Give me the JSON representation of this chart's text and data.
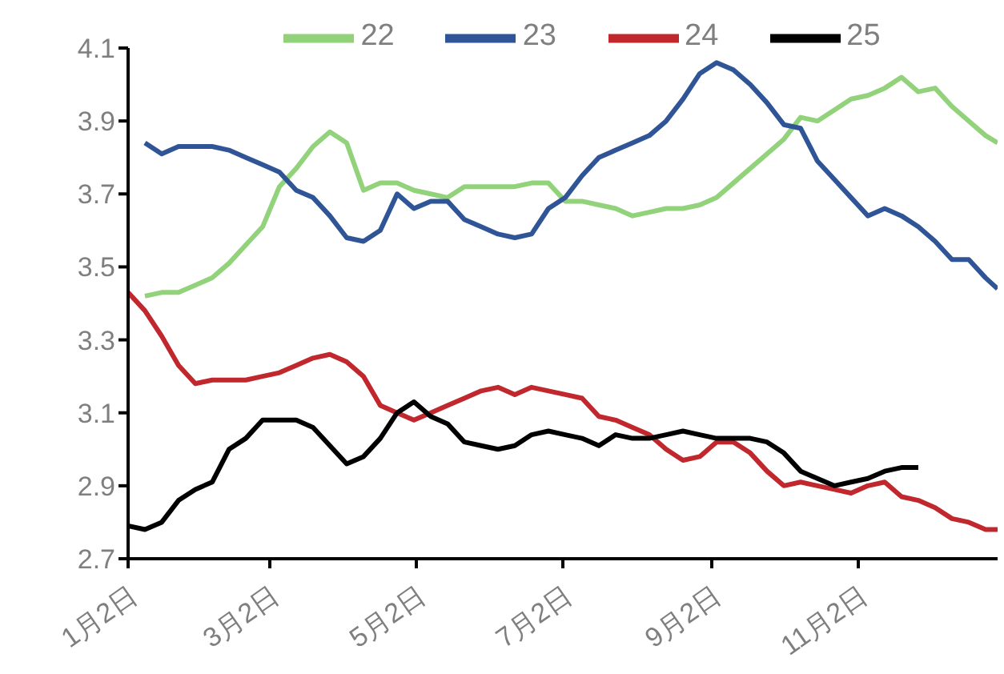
{
  "chart_data": {
    "type": "line",
    "x": [
      "--01-02",
      "--01-09",
      "--01-16",
      "--01-23",
      "--01-30",
      "--02-06",
      "--02-13",
      "--02-20",
      "--02-27",
      "--03-06",
      "--03-13",
      "--03-20",
      "--03-27",
      "--04-03",
      "--04-10",
      "--04-17",
      "--04-24",
      "--05-01",
      "--05-08",
      "--05-15",
      "--05-22",
      "--05-29",
      "--06-05",
      "--06-12",
      "--06-19",
      "--06-26",
      "--07-03",
      "--07-10",
      "--07-17",
      "--07-24",
      "--07-31",
      "--08-07",
      "--08-14",
      "--08-21",
      "--08-28",
      "--09-04",
      "--09-11",
      "--09-18",
      "--09-25",
      "--10-02",
      "--10-09",
      "--10-16",
      "--10-23",
      "--10-30",
      "--11-06",
      "--11-13",
      "--11-20",
      "--11-27",
      "--12-04",
      "--12-11",
      "--12-18",
      "--12-25",
      "--12-30"
    ],
    "series": [
      {
        "name": "22",
        "color": "#92d27a",
        "values": [
          null,
          3.42,
          3.43,
          3.43,
          3.45,
          3.47,
          3.51,
          3.56,
          3.61,
          3.72,
          3.77,
          3.83,
          3.87,
          3.84,
          3.71,
          3.73,
          3.73,
          3.71,
          3.7,
          3.69,
          3.72,
          3.72,
          3.72,
          3.72,
          3.73,
          3.73,
          3.68,
          3.68,
          3.67,
          3.66,
          3.64,
          3.65,
          3.66,
          3.66,
          3.67,
          3.69,
          3.73,
          3.77,
          3.81,
          3.85,
          3.91,
          3.9,
          3.93,
          3.96,
          3.97,
          3.99,
          4.02,
          3.98,
          3.99,
          3.94,
          3.9,
          3.86,
          3.84
        ]
      },
      {
        "name": "23",
        "color": "#2f5597",
        "values": [
          null,
          3.84,
          3.81,
          3.83,
          3.83,
          3.83,
          3.82,
          3.8,
          3.78,
          3.76,
          3.71,
          3.69,
          3.64,
          3.58,
          3.57,
          3.6,
          3.7,
          3.66,
          3.68,
          3.68,
          3.63,
          3.61,
          3.59,
          3.58,
          3.59,
          3.66,
          3.69,
          3.75,
          3.8,
          3.82,
          3.84,
          3.86,
          3.9,
          3.96,
          4.03,
          4.06,
          4.04,
          4.0,
          3.95,
          3.89,
          3.88,
          3.79,
          3.74,
          3.69,
          3.64,
          3.66,
          3.64,
          3.61,
          3.57,
          3.52,
          3.52,
          3.47,
          3.44
        ]
      },
      {
        "name": "24",
        "color": "#c0282d",
        "values": [
          3.43,
          3.38,
          3.31,
          3.23,
          3.18,
          3.19,
          3.19,
          3.19,
          3.2,
          3.21,
          3.23,
          3.25,
          3.26,
          3.24,
          3.2,
          3.12,
          3.1,
          3.08,
          3.1,
          3.12,
          3.14,
          3.16,
          3.17,
          3.15,
          3.17,
          3.16,
          3.15,
          3.14,
          3.09,
          3.08,
          3.06,
          3.04,
          3.0,
          2.97,
          2.98,
          3.02,
          3.02,
          2.99,
          2.94,
          2.9,
          2.91,
          2.9,
          2.89,
          2.88,
          2.9,
          2.91,
          2.87,
          2.86,
          2.84,
          2.81,
          2.8,
          2.78,
          2.78
        ]
      },
      {
        "name": "25",
        "color": "#000000",
        "values": [
          2.79,
          2.78,
          2.8,
          2.86,
          2.89,
          2.91,
          3.0,
          3.03,
          3.08,
          3.08,
          3.08,
          3.06,
          3.01,
          2.96,
          2.98,
          3.03,
          3.1,
          3.13,
          3.09,
          3.07,
          3.02,
          3.01,
          3.0,
          3.01,
          3.04,
          3.05,
          3.04,
          3.03,
          3.01,
          3.04,
          3.03,
          3.03,
          3.04,
          3.05,
          3.04,
          3.03,
          3.03,
          3.03,
          3.02,
          2.99,
          2.94,
          2.92,
          2.9,
          2.91,
          2.92,
          2.94,
          2.95,
          2.95,
          null,
          null,
          null,
          null,
          null
        ]
      }
    ],
    "xlim": [
      "--01-02",
      "--12-30"
    ],
    "xticks": [
      {
        "value": "--01-02",
        "label": "1月2日"
      },
      {
        "value": "--03-02",
        "label": "3月2日"
      },
      {
        "value": "--05-02",
        "label": "5月2日"
      },
      {
        "value": "--07-02",
        "label": "7月2日"
      },
      {
        "value": "--09-02",
        "label": "9月2日"
      },
      {
        "value": "--11-02",
        "label": "11月2日"
      }
    ],
    "ylim": [
      2.7,
      4.1
    ],
    "yticks": [
      2.7,
      2.9,
      3.1,
      3.3,
      3.5,
      3.7,
      3.9,
      4.1
    ],
    "grid": false,
    "legend": "top",
    "marker": "none",
    "line_style": "solid"
  }
}
